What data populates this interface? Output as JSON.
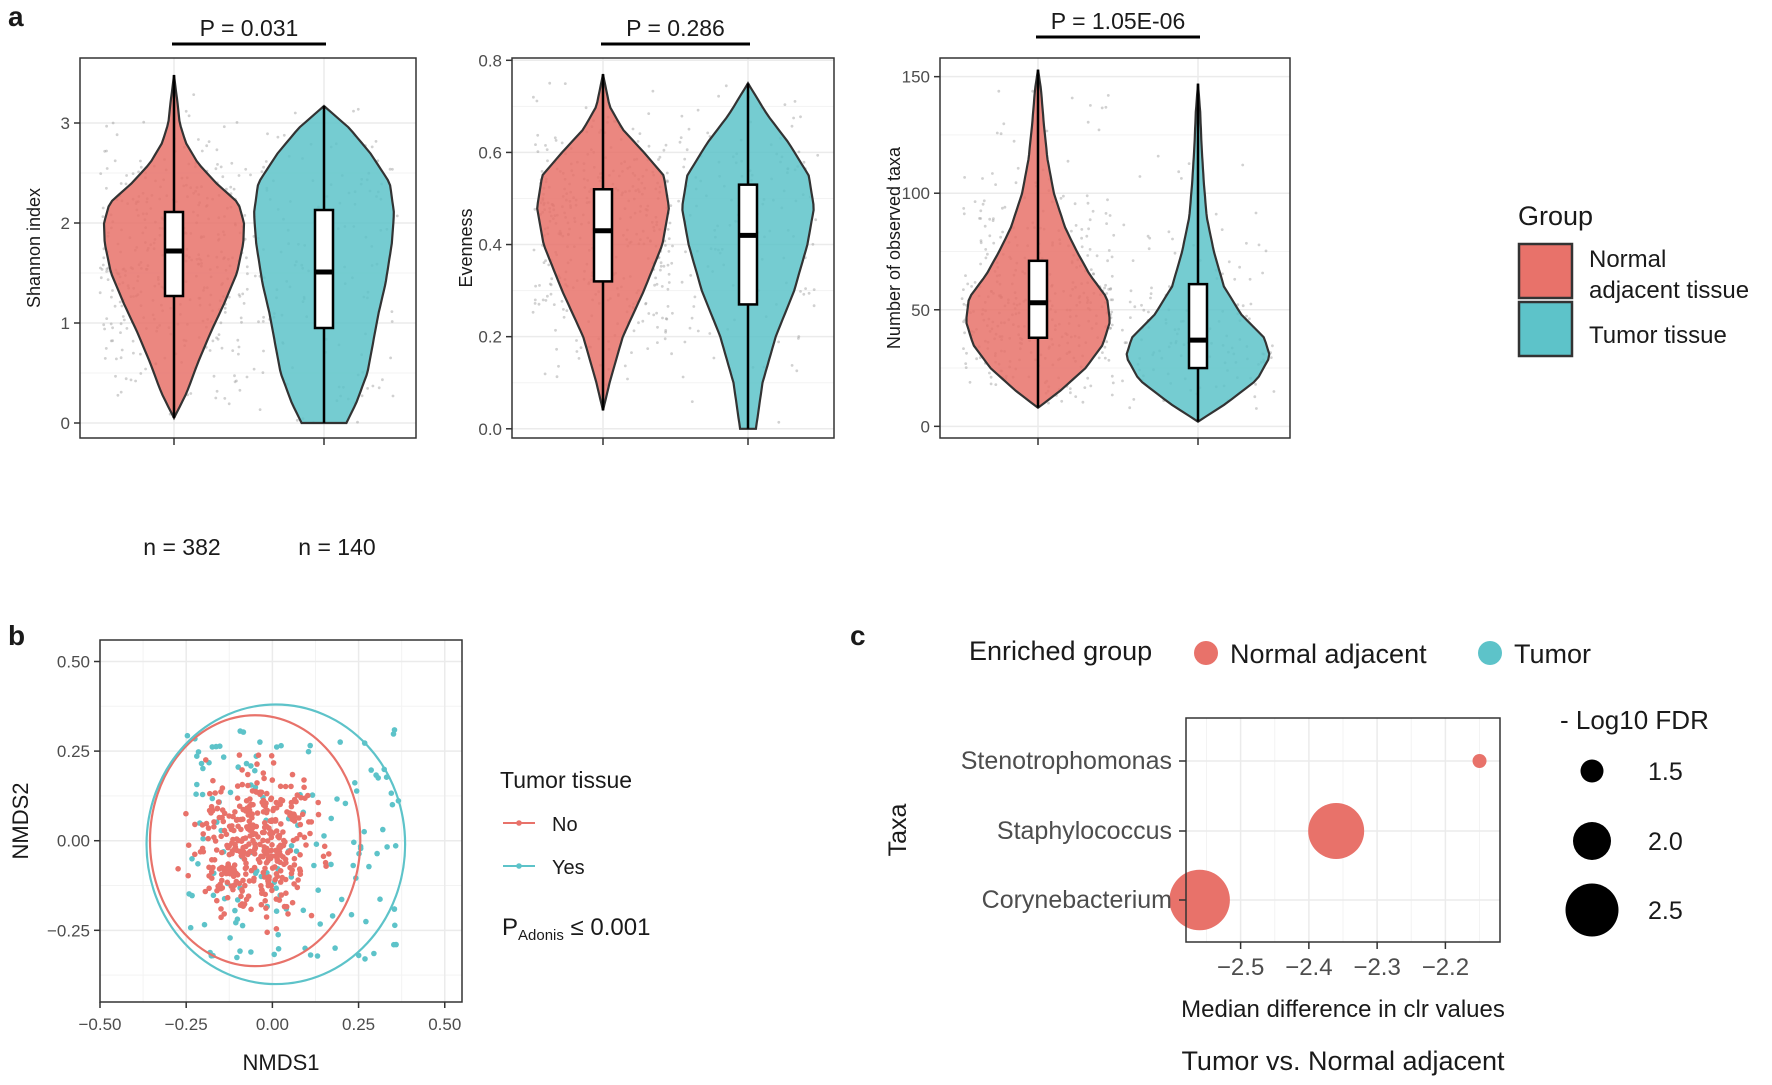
{
  "panel_labels": {
    "a": "a",
    "b": "b",
    "c": "c"
  },
  "colors": {
    "normal": "#E8726A",
    "tumor": "#5DC3C9",
    "outline": "#333333",
    "grid": "#EBEBEB",
    "point": "#9A9A9A"
  },
  "group_legend": {
    "title": "Group",
    "items": [
      "Normal adjacent tissue",
      "Tumor tissue"
    ],
    "item1_line1": "Normal",
    "item1_line2": "adjacent tissue"
  },
  "sample_sizes": {
    "normal": "n = 382",
    "tumor": "n = 140"
  },
  "nmds_legend": {
    "title": "Tumor tissue",
    "no": "No",
    "yes": "Yes",
    "p_main": "P",
    "p_sub": "Adonis",
    "p_value": " ≤ 0.001"
  },
  "dot_legend": {
    "title": "Enriched group",
    "normal": "Normal adjacent",
    "tumor": "Tumor"
  },
  "size_legend": {
    "title": "- Log10 FDR"
  },
  "chart_data": [
    {
      "type": "violin",
      "ylabel": "Shannon index",
      "pvalue": "P = 0.031",
      "ylim": [
        -0.15,
        3.65
      ],
      "yticks": [
        0,
        1,
        2,
        3
      ],
      "ytick_labels": [
        "0",
        "1",
        "2",
        "3"
      ],
      "groups": [
        {
          "name": "Normal adjacent tissue",
          "n": 382,
          "min": 0.05,
          "q1": 1.27,
          "median": 1.72,
          "q3": 2.11,
          "max": 3.48,
          "density": [
            [
              0.05,
              0.0
            ],
            [
              0.3,
              0.18
            ],
            [
              0.6,
              0.34
            ],
            [
              0.9,
              0.52
            ],
            [
              1.2,
              0.72
            ],
            [
              1.5,
              0.9
            ],
            [
              1.8,
              0.99
            ],
            [
              2.0,
              1.0
            ],
            [
              2.2,
              0.92
            ],
            [
              2.4,
              0.6
            ],
            [
              2.6,
              0.34
            ],
            [
              2.8,
              0.17
            ],
            [
              3.0,
              0.08
            ],
            [
              3.2,
              0.05
            ],
            [
              3.48,
              0.0
            ]
          ]
        },
        {
          "name": "Tumor tissue",
          "n": 140,
          "min": 0.0,
          "q1": 0.95,
          "median": 1.51,
          "q3": 2.13,
          "max": 3.17,
          "density": [
            [
              0.0,
              0.32
            ],
            [
              0.2,
              0.46
            ],
            [
              0.5,
              0.62
            ],
            [
              0.8,
              0.7
            ],
            [
              1.1,
              0.78
            ],
            [
              1.4,
              0.88
            ],
            [
              1.8,
              0.97
            ],
            [
              2.1,
              1.0
            ],
            [
              2.4,
              0.94
            ],
            [
              2.7,
              0.66
            ],
            [
              2.95,
              0.36
            ],
            [
              3.17,
              0.0
            ]
          ]
        }
      ]
    },
    {
      "type": "violin",
      "ylabel": "Evenness",
      "pvalue": "P = 0.286",
      "ylim": [
        -0.02,
        0.805
      ],
      "yticks": [
        0,
        0.2,
        0.4,
        0.6,
        0.8
      ],
      "ytick_labels": [
        "0.0",
        "0.2",
        "0.4",
        "0.6",
        "0.8"
      ],
      "groups": [
        {
          "name": "Normal adjacent tissue",
          "n": 382,
          "min": 0.04,
          "q1": 0.32,
          "median": 0.43,
          "q3": 0.52,
          "max": 0.77,
          "density": [
            [
              0.04,
              0.0
            ],
            [
              0.1,
              0.1
            ],
            [
              0.2,
              0.3
            ],
            [
              0.3,
              0.62
            ],
            [
              0.4,
              0.9
            ],
            [
              0.48,
              1.0
            ],
            [
              0.55,
              0.92
            ],
            [
              0.6,
              0.62
            ],
            [
              0.65,
              0.3
            ],
            [
              0.7,
              0.1
            ],
            [
              0.77,
              0.0
            ]
          ]
        },
        {
          "name": "Tumor tissue",
          "n": 140,
          "min": 0.0,
          "q1": 0.27,
          "median": 0.42,
          "q3": 0.53,
          "max": 0.75,
          "density": [
            [
              0.0,
              0.12
            ],
            [
              0.1,
              0.22
            ],
            [
              0.2,
              0.42
            ],
            [
              0.3,
              0.7
            ],
            [
              0.4,
              0.9
            ],
            [
              0.48,
              1.0
            ],
            [
              0.55,
              0.92
            ],
            [
              0.62,
              0.62
            ],
            [
              0.68,
              0.3
            ],
            [
              0.75,
              0.0
            ]
          ]
        }
      ]
    },
    {
      "type": "violin",
      "ylabel": "Number of observed taxa",
      "pvalue": "P = 1.05E-06",
      "ylim": [
        -5,
        158
      ],
      "yticks": [
        0,
        50,
        100,
        150
      ],
      "ytick_labels": [
        "0",
        "50",
        "100",
        "150"
      ],
      "groups": [
        {
          "name": "Normal adjacent tissue",
          "n": 382,
          "min": 8,
          "q1": 38,
          "median": 53,
          "q3": 71,
          "max": 153,
          "density": [
            [
              8,
              0.0
            ],
            [
              15,
              0.3
            ],
            [
              25,
              0.66
            ],
            [
              35,
              0.9
            ],
            [
              45,
              1.0
            ],
            [
              55,
              0.96
            ],
            [
              65,
              0.72
            ],
            [
              75,
              0.54
            ],
            [
              85,
              0.38
            ],
            [
              100,
              0.22
            ],
            [
              115,
              0.13
            ],
            [
              130,
              0.08
            ],
            [
              145,
              0.04
            ],
            [
              153,
              0.0
            ]
          ]
        },
        {
          "name": "Tumor tissue",
          "n": 140,
          "min": 2,
          "q1": 25,
          "median": 37,
          "q3": 61,
          "max": 147,
          "density": [
            [
              2,
              0.0
            ],
            [
              10,
              0.4
            ],
            [
              20,
              0.82
            ],
            [
              30,
              1.0
            ],
            [
              38,
              0.92
            ],
            [
              48,
              0.6
            ],
            [
              60,
              0.36
            ],
            [
              75,
              0.22
            ],
            [
              90,
              0.12
            ],
            [
              105,
              0.08
            ],
            [
              120,
              0.05
            ],
            [
              135,
              0.03
            ],
            [
              147,
              0.0
            ]
          ]
        }
      ]
    },
    {
      "type": "scatter",
      "xlabel": "NMDS1",
      "ylabel": "NMDS2",
      "xlim": [
        -0.5,
        0.55
      ],
      "ylim": [
        -0.45,
        0.56
      ],
      "xticks": [
        -0.5,
        -0.25,
        0,
        0.25,
        0.5
      ],
      "xtick_labels": [
        "−0.50",
        "−0.25",
        "0.00",
        "0.25",
        "0.50"
      ],
      "yticks": [
        -0.25,
        0,
        0.25,
        0.5
      ],
      "ytick_labels": [
        "−0.25",
        "0.00",
        "0.25",
        "0.50"
      ],
      "ellipses": [
        {
          "name": "No",
          "cx": -0.05,
          "cy": 0.0,
          "rx": 0.305,
          "ry": 0.35
        },
        {
          "name": "Yes",
          "cx": 0.01,
          "cy": -0.01,
          "rx": 0.375,
          "ry": 0.39
        }
      ],
      "n_points": {
        "No": 382,
        "Yes": 140
      }
    },
    {
      "type": "scatter",
      "title": "Tumor vs. Normal adjacent",
      "xlabel": "Median difference in clr values",
      "ylabel": "Taxa",
      "xlim": [
        -2.58,
        -2.12
      ],
      "xticks": [
        -2.5,
        -2.4,
        -2.3,
        -2.2
      ],
      "xtick_labels": [
        "−2.5",
        "−2.4",
        "−2.3",
        "−2.2"
      ],
      "categories": [
        "Stenotrophomonas",
        "Staphylococcus",
        "Corynebacterium"
      ],
      "points": [
        {
          "taxon": "Stenotrophomonas",
          "x": -2.15,
          "neglog10fdr": 1.2,
          "group": "Normal adjacent"
        },
        {
          "taxon": "Staphylococcus",
          "x": -2.36,
          "neglog10fdr": 2.6,
          "group": "Normal adjacent"
        },
        {
          "taxon": "Corynebacterium",
          "x": -2.56,
          "neglog10fdr": 2.75,
          "group": "Normal adjacent"
        }
      ],
      "size_legend": [
        1.5,
        2.0,
        2.5
      ],
      "size_legend_labels": [
        "1.5",
        "2.0",
        "2.5"
      ]
    }
  ]
}
